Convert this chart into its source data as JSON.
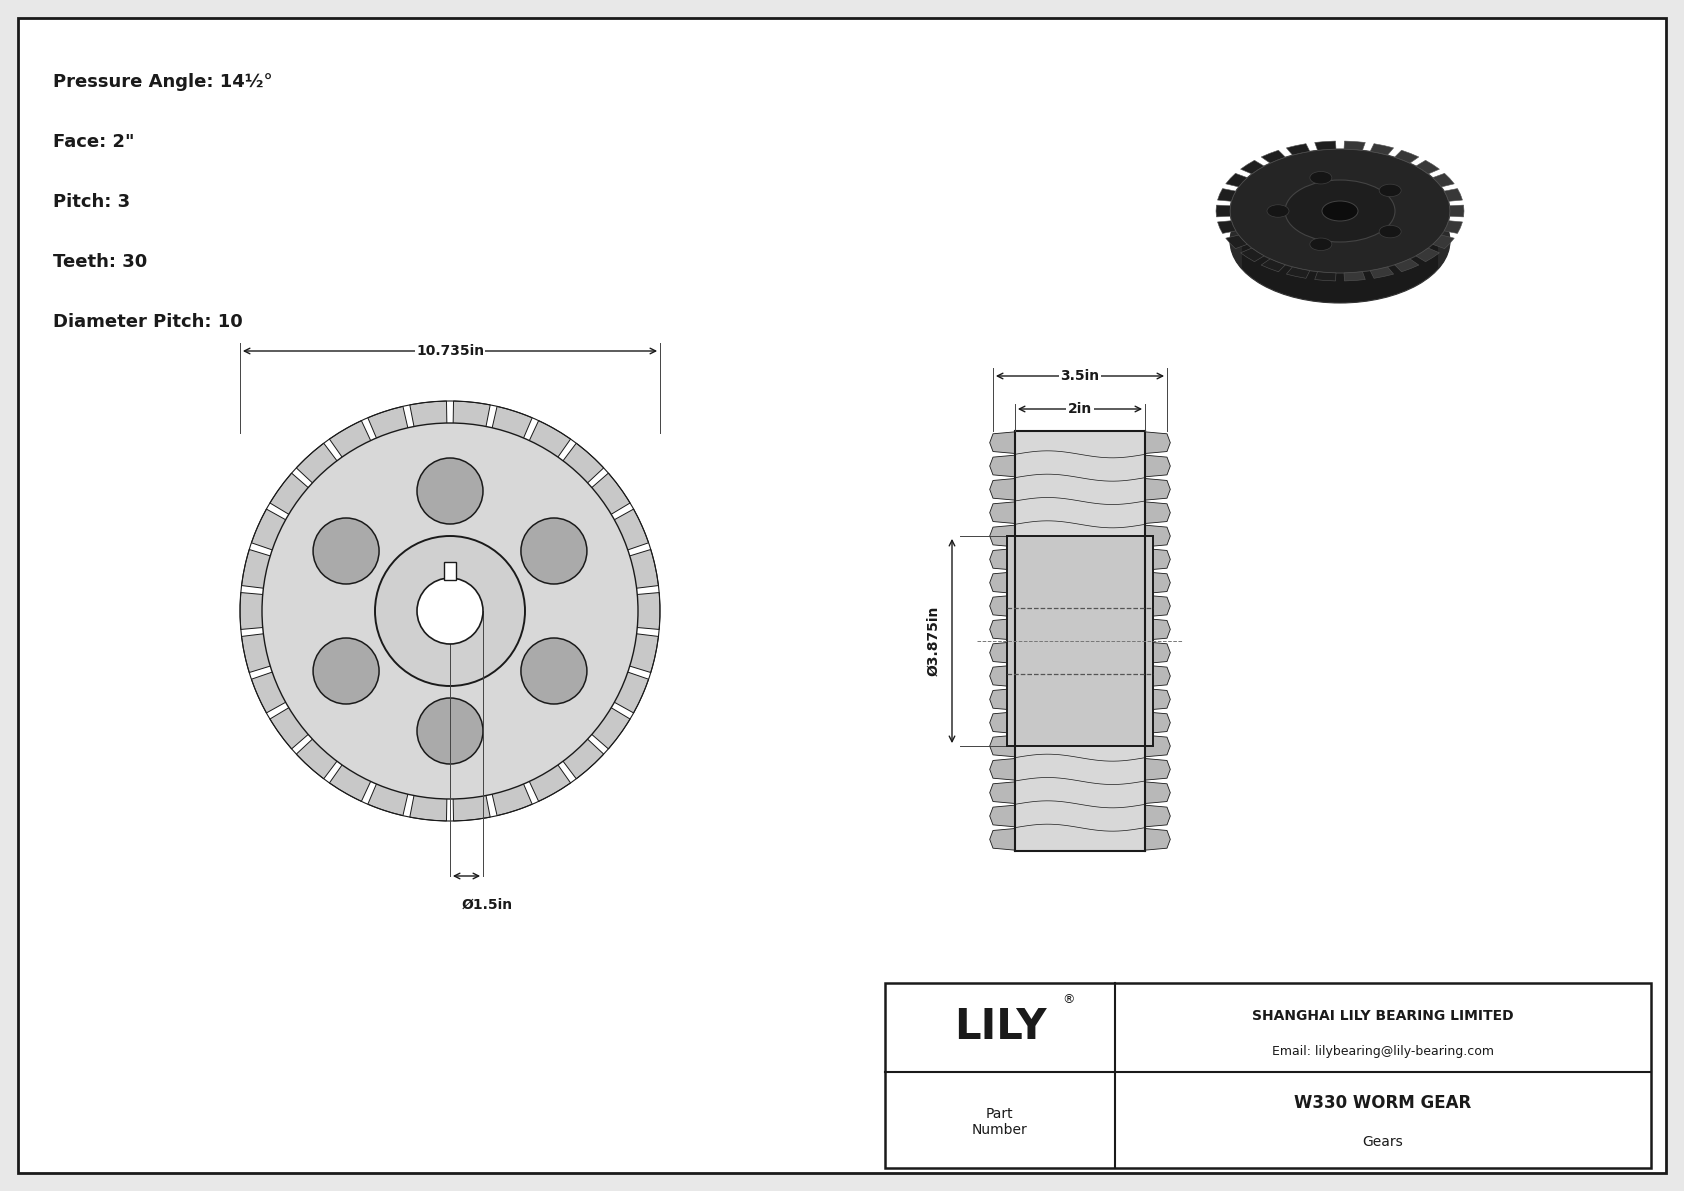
{
  "background_color": "#e8e8e8",
  "paper_color": "#ffffff",
  "line_color": "#1a1a1a",
  "spec_lines": [
    "Pressure Angle: 14½°",
    "Face: 2\"",
    "Pitch: 3",
    "Teeth: 30",
    "Diameter Pitch: 10"
  ],
  "title_block": {
    "company": "SHANGHAI LILY BEARING LIMITED",
    "email": "Email: lilybearing@lily-bearing.com",
    "part_label": "Part\nNumber",
    "part_name": "W330 WORM GEAR",
    "category": "Gears",
    "lily_registered": "®"
  },
  "dim_front_width": "10.735in",
  "dim_front_bore": "Ø1.5in",
  "dim_side_face": "3.5in",
  "dim_side_inner_face": "2in",
  "dim_side_hub_dia": "Ø3.875in"
}
